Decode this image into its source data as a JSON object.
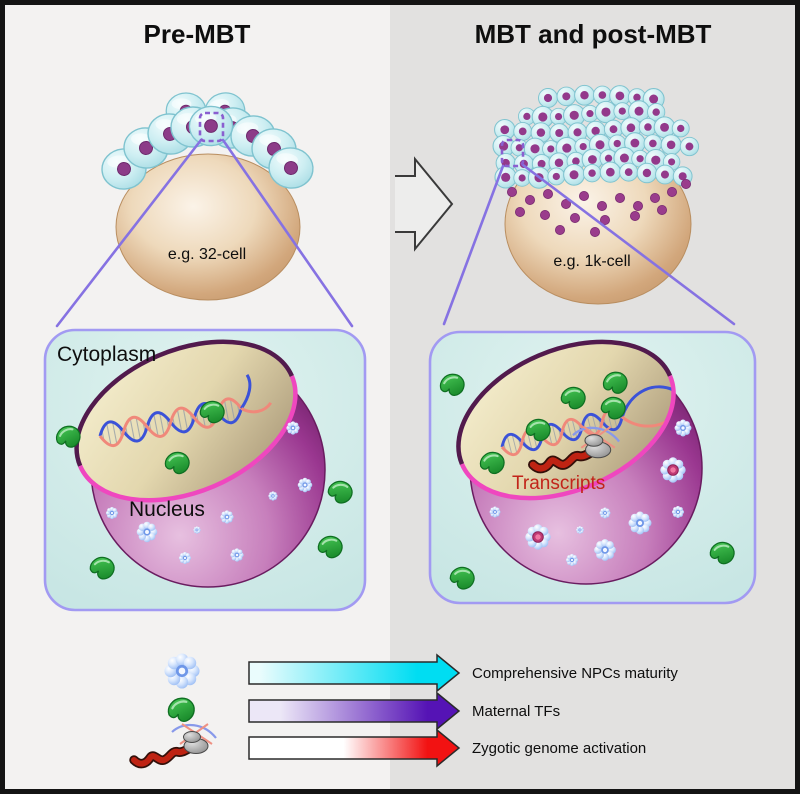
{
  "frame": {
    "border_color": "#141414"
  },
  "panels": {
    "left": {
      "title": "Pre-MBT",
      "background": "#f3f2f1",
      "embryo_label": "e.g. 32-cell",
      "cytoplasm_label": "Cytoplasm",
      "nucleus_label": "Nucleus"
    },
    "right": {
      "title": "MBT and post-MBT",
      "background": "#e2e1e0",
      "embryo_label": "e.g. 1k-cell",
      "transcripts_label": "Transcripts"
    }
  },
  "legend": {
    "items": [
      {
        "icon": "npc-flower-icon",
        "label": "Comprehensive NPCs maturity",
        "gradient_start": "#eafcfd",
        "gradient_end": "#00ddf2"
      },
      {
        "icon": "maternal-tf-icon",
        "label": "Maternal TFs",
        "gradient_start": "#ece7f7",
        "gradient_end": "#5513b5"
      },
      {
        "icon": "zga-transcript-icon",
        "label": "Zygotic genome activation",
        "gradient_start": "#ffffff",
        "gradient_end": "#f21212"
      }
    ]
  }
}
